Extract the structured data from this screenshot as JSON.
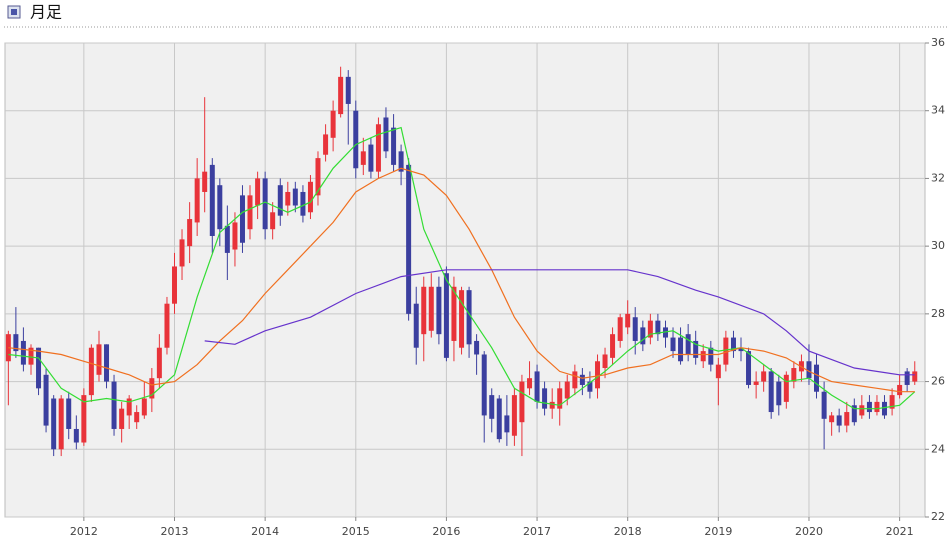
{
  "chart_data": {
    "type": "candlestick",
    "title": "月足",
    "xlim": [
      2011.13,
      2021.28
    ],
    "xticks": [
      2012,
      2013,
      2014,
      2015,
      2016,
      2017,
      2018,
      2019,
      2020,
      2021
    ],
    "ylim": [
      22,
      36
    ],
    "yticks": [
      22,
      24,
      26,
      28,
      30,
      32,
      34,
      36
    ],
    "grid": true,
    "up_color": "#e8333a",
    "down_color": "#3b3f9f",
    "x": [
      2011.167,
      2011.25,
      2011.333,
      2011.417,
      2011.5,
      2011.583,
      2011.667,
      2011.75,
      2011.833,
      2011.917,
      2012,
      2012.083,
      2012.167,
      2012.25,
      2012.333,
      2012.417,
      2012.5,
      2012.583,
      2012.667,
      2012.75,
      2012.833,
      2012.917,
      2013,
      2013.083,
      2013.167,
      2013.25,
      2013.333,
      2013.417,
      2013.5,
      2013.583,
      2013.667,
      2013.75,
      2013.833,
      2013.917,
      2014,
      2014.083,
      2014.167,
      2014.25,
      2014.333,
      2014.417,
      2014.5,
      2014.583,
      2014.667,
      2014.75,
      2014.833,
      2014.917,
      2015,
      2015.083,
      2015.167,
      2015.25,
      2015.333,
      2015.417,
      2015.5,
      2015.583,
      2015.667,
      2015.75,
      2015.833,
      2015.917,
      2016,
      2016.083,
      2016.167,
      2016.25,
      2016.333,
      2016.417,
      2016.5,
      2016.583,
      2016.667,
      2016.75,
      2016.833,
      2016.917,
      2017,
      2017.083,
      2017.167,
      2017.25,
      2017.333,
      2017.417,
      2017.5,
      2017.583,
      2017.667,
      2017.75,
      2017.833,
      2017.917,
      2018,
      2018.083,
      2018.167,
      2018.25,
      2018.333,
      2018.417,
      2018.5,
      2018.583,
      2018.667,
      2018.75,
      2018.833,
      2018.917,
      2019,
      2019.083,
      2019.167,
      2019.25,
      2019.333,
      2019.417,
      2019.5,
      2019.583,
      2019.667,
      2019.75,
      2019.833,
      2019.917,
      2020,
      2020.083,
      2020.167,
      2020.25,
      2020.333,
      2020.417,
      2020.5,
      2020.583,
      2020.667,
      2020.75,
      2020.833,
      2020.917,
      2021,
      2021.083,
      2021.167
    ],
    "open": [
      26.6,
      27.4,
      27.2,
      26.5,
      27.0,
      26.2,
      25.5,
      24.0,
      25.5,
      24.6,
      24.2,
      25.6,
      26.2,
      27.1,
      26.0,
      24.6,
      25.0,
      24.8,
      25.0,
      25.5,
      26.1,
      27.0,
      28.3,
      29.4,
      30.0,
      30.7,
      31.6,
      32.4,
      31.8,
      30.6,
      29.9,
      31.5,
      30.5,
      31.2,
      32.0,
      30.5,
      31.8,
      31.2,
      31.7,
      31.6,
      31.0,
      31.5,
      32.7,
      33.2,
      33.9,
      35.0,
      34.0,
      32.4,
      33.0,
      32.2,
      33.8,
      33.5,
      32.8,
      32.4,
      28.3,
      27.4,
      27.5,
      28.8,
      29.2,
      27.2,
      27.0,
      28.7,
      27.2,
      26.8,
      25.6,
      25.5,
      25.0,
      24.4,
      24.8,
      25.8,
      26.3,
      25.8,
      25.2,
      25.2,
      25.5,
      25.8,
      26.2,
      26.0,
      25.8,
      26.4,
      26.7,
      27.2,
      27.6,
      27.9,
      27.6,
      27.3,
      27.8,
      27.6,
      27.3,
      27.3,
      27.4,
      27.2,
      26.6,
      27.0,
      26.1,
      26.5,
      27.3,
      27.0,
      26.9,
      25.9,
      26.0,
      26.3,
      26.0,
      25.4,
      26.0,
      26.3,
      26.6,
      26.5,
      25.7,
      24.8,
      25.0,
      24.7,
      25.3,
      25.0,
      25.4,
      25.1,
      25.4,
      25.2,
      25.6,
      26.3,
      26.0
    ],
    "high": [
      27.5,
      28.2,
      27.6,
      27.1,
      27.0,
      26.4,
      25.6,
      25.6,
      25.7,
      25.0,
      25.8,
      27.1,
      27.5,
      27.1,
      26.2,
      25.4,
      25.6,
      25.3,
      26.0,
      26.4,
      27.4,
      28.5,
      29.8,
      30.5,
      31.3,
      32.6,
      34.4,
      32.6,
      32.0,
      31.2,
      31.0,
      31.8,
      31.8,
      32.2,
      32.2,
      31.3,
      32.0,
      31.9,
      31.9,
      31.8,
      32.1,
      32.8,
      33.6,
      34.3,
      35.3,
      35.2,
      34.3,
      33.2,
      33.2,
      33.8,
      34.1,
      33.9,
      33.0,
      32.6,
      28.8,
      29.1,
      29.2,
      29.1,
      29.4,
      29.1,
      28.8,
      28.8,
      27.4,
      26.9,
      25.8,
      25.6,
      25.6,
      25.8,
      26.2,
      26.6,
      26.5,
      26.0,
      25.8,
      26.0,
      26.2,
      26.5,
      26.4,
      26.3,
      26.8,
      27.0,
      27.6,
      28.0,
      28.4,
      28.2,
      27.8,
      28.0,
      28.0,
      27.8,
      27.6,
      27.6,
      27.7,
      27.5,
      27.1,
      27.2,
      26.7,
      27.5,
      27.5,
      27.3,
      27.0,
      26.3,
      26.5,
      26.4,
      26.2,
      26.3,
      26.6,
      26.8,
      27.1,
      26.8,
      26.0,
      25.1,
      25.2,
      25.4,
      25.5,
      25.6,
      25.6,
      25.6,
      25.6,
      25.8,
      26.2,
      26.4,
      26.6
    ],
    "low": [
      25.3,
      26.7,
      26.3,
      26.2,
      25.6,
      24.5,
      23.8,
      23.8,
      24.3,
      24.0,
      24.1,
      25.4,
      26.0,
      25.8,
      24.4,
      24.2,
      24.6,
      24.6,
      24.9,
      25.1,
      25.8,
      26.8,
      28.0,
      29.0,
      29.5,
      30.3,
      31.0,
      29.8,
      30.0,
      29.0,
      29.4,
      29.8,
      30.2,
      30.8,
      30.2,
      30.2,
      30.6,
      30.9,
      31.0,
      30.7,
      30.8,
      31.2,
      32.5,
      32.8,
      33.8,
      33.0,
      32.0,
      32.1,
      32.0,
      32.0,
      32.6,
      32.2,
      31.8,
      27.8,
      26.5,
      26.6,
      27.3,
      27.1,
      26.6,
      26.6,
      26.8,
      26.7,
      26.2,
      24.2,
      24.5,
      24.2,
      24.1,
      24.1,
      23.8,
      25.6,
      25.2,
      25.0,
      24.9,
      24.7,
      25.3,
      25.6,
      25.6,
      25.5,
      25.5,
      26.1,
      26.5,
      27.0,
      27.4,
      26.8,
      26.9,
      27.1,
      27.2,
      27.0,
      26.7,
      26.5,
      26.6,
      26.5,
      26.4,
      26.3,
      25.3,
      26.3,
      26.7,
      26.6,
      25.8,
      25.5,
      25.7,
      24.9,
      25.0,
      25.2,
      25.8,
      26.0,
      25.9,
      25.5,
      24.0,
      24.4,
      24.5,
      24.5,
      24.7,
      24.9,
      24.9,
      25.0,
      24.9,
      25.0,
      25.5,
      25.7,
      25.9
    ],
    "close": [
      27.4,
      26.9,
      26.5,
      27.0,
      25.8,
      24.7,
      24.0,
      25.5,
      24.6,
      24.2,
      25.6,
      27.0,
      27.1,
      26.0,
      24.6,
      25.2,
      25.5,
      25.1,
      25.5,
      26.1,
      27.0,
      28.3,
      29.4,
      30.2,
      30.8,
      32.0,
      32.2,
      30.3,
      30.5,
      29.8,
      30.7,
      30.1,
      31.5,
      32.0,
      30.5,
      31.0,
      30.9,
      31.6,
      31.2,
      30.9,
      31.9,
      32.6,
      33.3,
      34.0,
      35.0,
      34.2,
      32.3,
      32.8,
      32.2,
      33.6,
      32.8,
      32.4,
      32.2,
      28.0,
      27.0,
      28.8,
      28.8,
      27.4,
      26.7,
      28.8,
      28.7,
      27.1,
      26.8,
      25.0,
      24.9,
      24.3,
      24.5,
      25.6,
      26.0,
      26.1,
      25.4,
      25.2,
      25.4,
      25.8,
      26.0,
      26.3,
      25.9,
      25.7,
      26.6,
      26.8,
      27.4,
      27.9,
      28.0,
      27.2,
      27.1,
      27.8,
      27.4,
      27.3,
      26.9,
      26.6,
      26.8,
      26.7,
      26.9,
      26.5,
      26.5,
      27.3,
      26.9,
      26.9,
      25.9,
      26.0,
      26.3,
      25.1,
      25.3,
      26.2,
      26.4,
      26.6,
      26.1,
      25.7,
      24.9,
      25.0,
      24.7,
      25.1,
      24.8,
      25.3,
      25.1,
      25.4,
      25.0,
      25.6,
      25.9,
      25.9,
      26.3
    ],
    "lines": [
      {
        "color": "#33dd33",
        "x": [
          2011.167,
          2011.5,
          2011.75,
          2012,
          2012.25,
          2012.5,
          2012.75,
          2013,
          2013.25,
          2013.5,
          2013.75,
          2014,
          2014.25,
          2014.5,
          2014.75,
          2015,
          2015.25,
          2015.5,
          2015.75,
          2016,
          2016.25,
          2016.5,
          2016.75,
          2017,
          2017.25,
          2017.5,
          2017.75,
          2018,
          2018.25,
          2018.5,
          2018.75,
          2019,
          2019.25,
          2019.5,
          2019.75,
          2020,
          2020.25,
          2020.5,
          2020.75,
          2021,
          2021.167
        ],
        "values": [
          26.8,
          26.7,
          25.8,
          25.4,
          25.5,
          25.4,
          25.6,
          26.2,
          28.5,
          30.4,
          31.0,
          31.3,
          31.0,
          31.3,
          32.3,
          33.0,
          33.3,
          33.5,
          30.5,
          29.0,
          28.0,
          27.0,
          25.8,
          25.4,
          25.3,
          25.8,
          26.3,
          26.9,
          27.4,
          27.5,
          27.1,
          26.9,
          27.0,
          26.5,
          26.0,
          26.1,
          25.6,
          25.2,
          25.2,
          25.3,
          25.7
        ]
      },
      {
        "color": "#f07020",
        "x": [
          2011.167,
          2011.5,
          2011.75,
          2012,
          2012.25,
          2012.5,
          2012.75,
          2013,
          2013.25,
          2013.5,
          2013.75,
          2014,
          2014.25,
          2014.5,
          2014.75,
          2015,
          2015.25,
          2015.5,
          2015.75,
          2016,
          2016.25,
          2016.5,
          2016.75,
          2017,
          2017.25,
          2017.5,
          2017.75,
          2018,
          2018.25,
          2018.5,
          2018.75,
          2019,
          2019.25,
          2019.5,
          2019.75,
          2020,
          2020.25,
          2020.5,
          2020.75,
          2021,
          2021.167
        ],
        "values": [
          27.0,
          26.9,
          26.8,
          26.6,
          26.4,
          26.2,
          25.9,
          26.0,
          26.5,
          27.2,
          27.8,
          28.6,
          29.3,
          30.0,
          30.7,
          31.6,
          32.0,
          32.3,
          32.1,
          31.5,
          30.5,
          29.3,
          27.9,
          26.9,
          26.3,
          26.1,
          26.2,
          26.4,
          26.5,
          26.8,
          26.8,
          26.8,
          27.0,
          26.9,
          26.7,
          26.3,
          26.0,
          25.9,
          25.8,
          25.7,
          25.7
        ]
      },
      {
        "color": "#6633cc",
        "x": [
          2013.333,
          2013.667,
          2014,
          2014.5,
          2015,
          2015.5,
          2016,
          2016.5,
          2017,
          2017.5,
          2018,
          2018.333,
          2018.75,
          2019,
          2019.5,
          2019.75,
          2020,
          2020.5,
          2021,
          2021.167
        ],
        "values": [
          27.2,
          27.1,
          27.5,
          27.9,
          28.6,
          29.1,
          29.3,
          29.3,
          29.3,
          29.3,
          29.3,
          29.1,
          28.7,
          28.5,
          28.0,
          27.5,
          26.9,
          26.4,
          26.2,
          26.2
        ]
      }
    ]
  }
}
